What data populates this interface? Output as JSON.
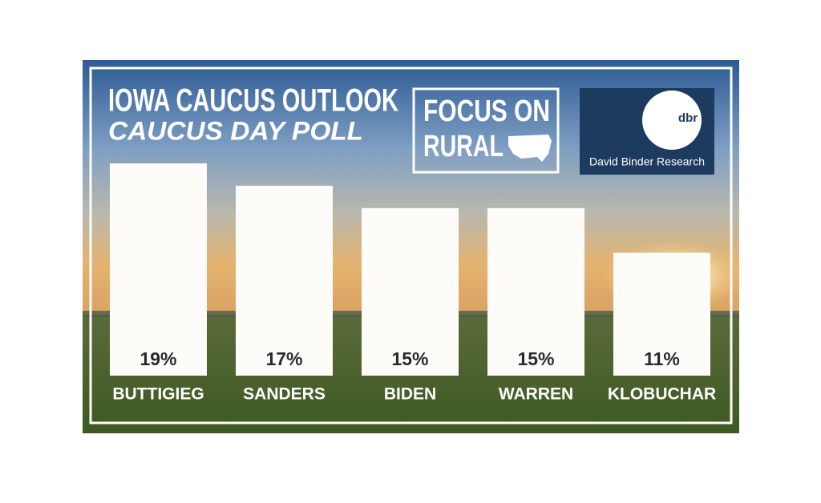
{
  "chart_data": {
    "type": "bar",
    "title": "IOWA CAUCUS OUTLOOK",
    "subtitle": "CAUCUS DAY POLL",
    "logo_text": [
      "FOCUS ON",
      "RURAL"
    ],
    "brand_mark": "dbr",
    "brand_name": "David Binder Research",
    "categories": [
      "BUTTIGIEG",
      "SANDERS",
      "BIDEN",
      "WARREN",
      "KLOBUCHAR"
    ],
    "values": [
      19,
      17,
      15,
      15,
      11
    ],
    "value_labels": [
      "19%",
      "17%",
      "15%",
      "15%",
      "11%"
    ],
    "color": "#fdfcf8"
  }
}
